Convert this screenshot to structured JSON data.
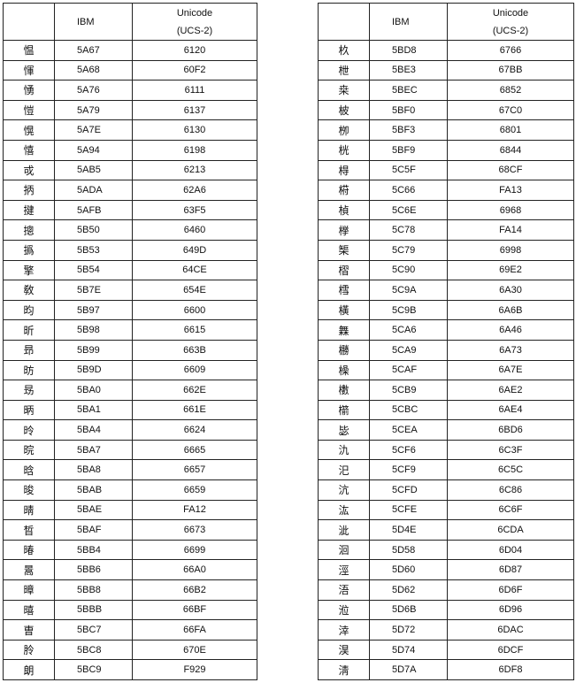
{
  "headers": {
    "char": "",
    "ibm": "IBM",
    "unicode_line1": "Unicode",
    "unicode_line2": "(UCS-2)"
  },
  "tables": [
    {
      "rows": [
        [
          "愠",
          "5A67",
          "6120"
        ],
        [
          "惲",
          "5A68",
          "60F2"
        ],
        [
          "愑",
          "5A76",
          "6111"
        ],
        [
          "愷",
          "5A79",
          "6137"
        ],
        [
          "愰",
          "5A7E",
          "6130"
        ],
        [
          "憘",
          "5A94",
          "6198"
        ],
        [
          "戓",
          "5AB5",
          "6213"
        ],
        [
          "抦",
          "5ADA",
          "62A6"
        ],
        [
          "揵",
          "5AFB",
          "63F5"
        ],
        [
          "摠",
          "5B50",
          "6460"
        ],
        [
          "撝",
          "5B53",
          "649D"
        ],
        [
          "擎",
          "5B54",
          "64CE"
        ],
        [
          "敎",
          "5B7E",
          "654E"
        ],
        [
          "昀",
          "5B97",
          "6600"
        ],
        [
          "昕",
          "5B98",
          "6615"
        ],
        [
          "昻",
          "5B99",
          "663B"
        ],
        [
          "昉",
          "5B9D",
          "6609"
        ],
        [
          "昮",
          "5BA0",
          "662E"
        ],
        [
          "昞",
          "5BA1",
          "661E"
        ],
        [
          "昤",
          "5BA4",
          "6624"
        ],
        [
          "晥",
          "5BA7",
          "6665"
        ],
        [
          "晗",
          "5BA8",
          "6657"
        ],
        [
          "晙",
          "5BAB",
          "6659"
        ],
        [
          "晴",
          "5BAE",
          "FA12"
        ],
        [
          "晳",
          "5BAF",
          "6673"
        ],
        [
          "暙",
          "5BB4",
          "6699"
        ],
        [
          "暠",
          "5BB6",
          "66A0"
        ],
        [
          "暲",
          "5BB8",
          "66B2"
        ],
        [
          "暿",
          "5BBB",
          "66BF"
        ],
        [
          "曺",
          "5BC7",
          "66FA"
        ],
        [
          "朎",
          "5BC8",
          "670E"
        ],
        [
          "朗",
          "5BC9",
          "F929"
        ]
      ]
    },
    {
      "rows": [
        [
          "杦",
          "5BD8",
          "6766"
        ],
        [
          "枻",
          "5BE3",
          "67BB"
        ],
        [
          "桒",
          "5BEC",
          "6852"
        ],
        [
          "柀",
          "5BF0",
          "67C0"
        ],
        [
          "栁",
          "5BF3",
          "6801"
        ],
        [
          "桄",
          "5BF9",
          "6844"
        ],
        [
          "棏",
          "5C5F",
          "68CF"
        ],
        [
          "﨓",
          "5C66",
          "FA13"
        ],
        [
          "楨",
          "5C6E",
          "6968"
        ],
        [
          "﨔",
          "5C78",
          "FA14"
        ],
        [
          "榘",
          "5C79",
          "6998"
        ],
        [
          "槢",
          "5C90",
          "69E2"
        ],
        [
          "樰",
          "5C9A",
          "6A30"
        ],
        [
          "橫",
          "5C9B",
          "6A6B"
        ],
        [
          "橆",
          "5CA6",
          "6A46"
        ],
        [
          "橳",
          "5CA9",
          "6A73"
        ],
        [
          "橾",
          "5CAF",
          "6A7E"
        ],
        [
          "櫢",
          "5CB9",
          "6AE2"
        ],
        [
          "櫤",
          "5CBC",
          "6AE4"
        ],
        [
          "毖",
          "5CEA",
          "6BD6"
        ],
        [
          "氿",
          "5CF6",
          "6C3F"
        ],
        [
          "汜",
          "5CF9",
          "6C5C"
        ],
        [
          "沆",
          "5CFD",
          "6C86"
        ],
        [
          "汯",
          "5CFE",
          "6C6F"
        ],
        [
          "泚",
          "5D4E",
          "6CDA"
        ],
        [
          "洄",
          "5D58",
          "6D04"
        ],
        [
          "涇",
          "5D60",
          "6D87"
        ],
        [
          "浯",
          "5D62",
          "6D6F"
        ],
        [
          "涖",
          "5D6B",
          "6D96"
        ],
        [
          "涬",
          "5D72",
          "6DAC"
        ],
        [
          "淏",
          "5D74",
          "6DCF"
        ],
        [
          "淸",
          "5D7A",
          "6DF8"
        ]
      ]
    }
  ]
}
